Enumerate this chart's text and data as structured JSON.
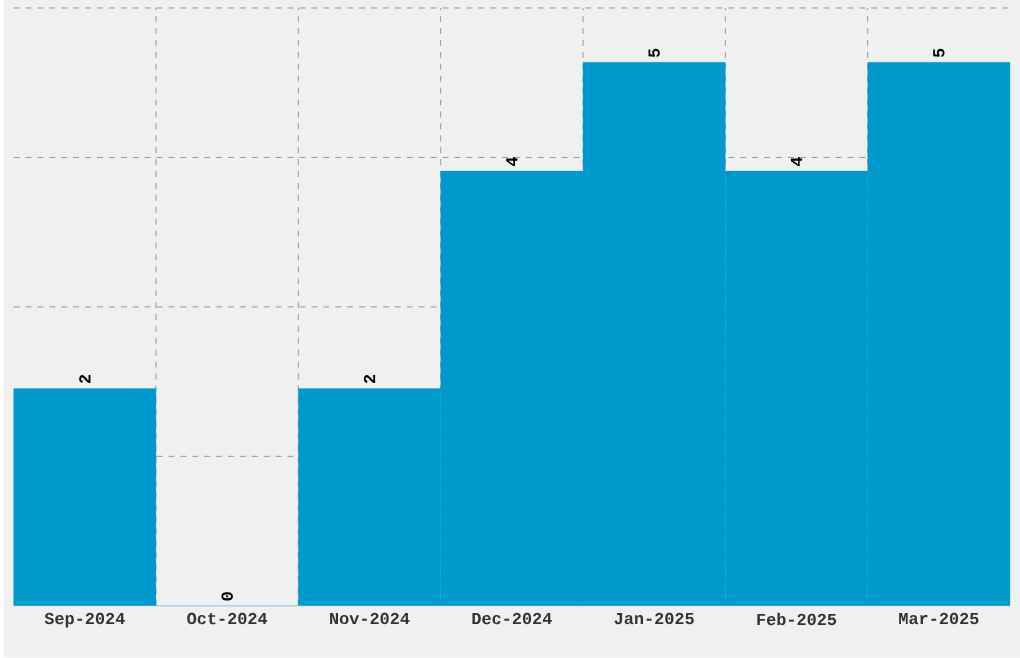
{
  "chart_data": {
    "type": "bar",
    "categories": [
      "Sep-2024",
      "Oct-2024",
      "Nov-2024",
      "Dec-2024",
      "Jan-2025",
      "Feb-2025",
      "Mar-2025"
    ],
    "values": [
      2,
      0,
      2,
      4,
      5,
      4,
      5
    ],
    "color": "#0099cc",
    "ylim": [
      0,
      5.5
    ],
    "yticks": [
      {
        "value": 1.375,
        "label": null
      },
      {
        "value": 2.75,
        "label": null
      },
      {
        "value": 4.125,
        "label": null
      },
      {
        "value": 5.5,
        "label": null
      }
    ],
    "tick_labels": "x",
    "grid": true,
    "data_labels": true
  }
}
